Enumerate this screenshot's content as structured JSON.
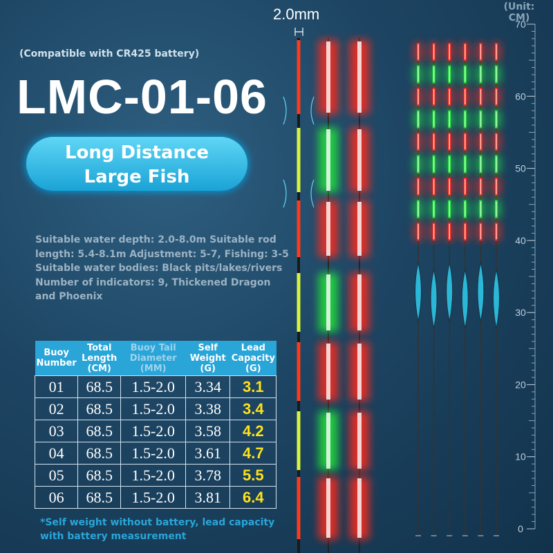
{
  "dimension": "2.0mm",
  "unit": "(Unit: CM)",
  "compatibility": "(Compatible with CR425 battery)",
  "model": "LMC-01-06",
  "badge": [
    "Long Distance",
    "Large Fish"
  ],
  "description": [
    "Suitable water depth: 2.0-8.0m Suitable rod",
    "length: 5.4-8.1m Adjustment: 5-7, Fishing: 3-5",
    "Suitable water bodies: Black pits/lakes/rivers",
    "Number of indicators: 9, Thickened Dragon",
    "and Phoenix"
  ],
  "table": {
    "headers": [
      "Buoy Number",
      "Total Length (CM)",
      "Buoy Tail Diameter (MM)",
      "Self Weight (G)",
      "Lead Capacity (G)"
    ],
    "rows": [
      [
        "01",
        "68.5",
        "1.5-2.0",
        "3.34",
        "3.1"
      ],
      [
        "02",
        "68.5",
        "1.5-2.0",
        "3.38",
        "3.4"
      ],
      [
        "03",
        "68.5",
        "1.5-2.0",
        "3.58",
        "4.2"
      ],
      [
        "04",
        "68.5",
        "1.5-2.0",
        "3.61",
        "4.7"
      ],
      [
        "05",
        "68.5",
        "1.5-2.0",
        "3.78",
        "5.5"
      ],
      [
        "06",
        "68.5",
        "1.5-2.0",
        "3.81",
        "6.4"
      ]
    ]
  },
  "footnote": [
    "*Self weight without battery, lead capacity",
    "with battery measurement"
  ],
  "ruler": {
    "labels": [
      0,
      10,
      20,
      30,
      40,
      50,
      60,
      70
    ]
  }
}
